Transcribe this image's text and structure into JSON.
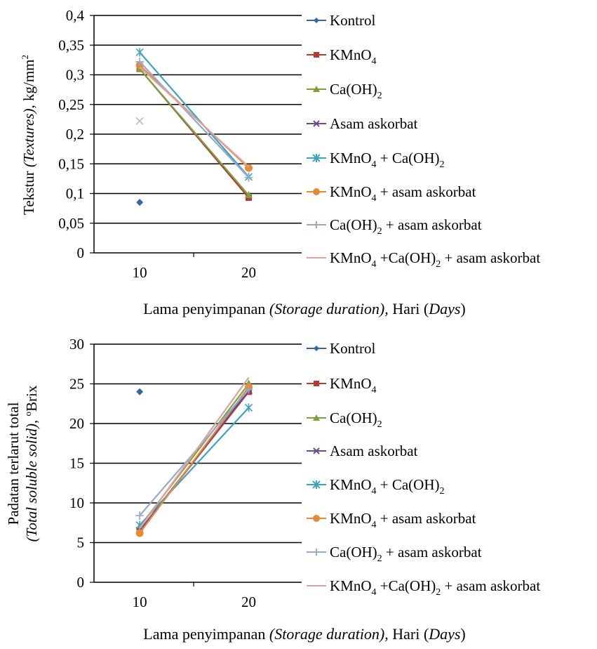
{
  "colors": {
    "kontrol": "#3466a5",
    "kmno4": "#b33a39",
    "caoh2": "#7ea23b",
    "asam": "#6a4c8c",
    "kmno4_caoh2": "#3ca4bf",
    "kmno4_asam": "#e88a34",
    "caoh2_asam": "#93a9d0",
    "all": "#e0a09f"
  },
  "legend_labels": {
    "kontrol": "Kontrol",
    "kmno4": "KMnO",
    "caoh2": "Ca(OH)",
    "asam": "Asam askorbat",
    "kmno4_caoh2_a": "KMnO",
    "kmno4_caoh2_b": " + Ca(OH)",
    "kmno4_asam_a": "KMnO",
    "kmno4_asam_b": " + asam askorbat",
    "caoh2_asam_a": "Ca(OH)",
    "caoh2_asam_b": " + asam askorbat",
    "all_a": "KMnO",
    "all_b": " +Ca(OH)",
    "all_c": " + asam askorbat",
    "sub4": "4",
    "sub2": "2"
  },
  "chart_data": [
    {
      "type": "line",
      "x": [
        10,
        20
      ],
      "xticklabels": [
        "10",
        "20"
      ],
      "yticklabels": [
        "0",
        "0,05",
        "0,1",
        "0,15",
        "0,2",
        "0,25",
        "0,3",
        "0,35",
        "0,4"
      ],
      "ylim": [
        0,
        0.4
      ],
      "ylabel_parts": [
        "Tekstur ",
        "(Textures)",
        ", kg/mm",
        "2"
      ],
      "xlabel_parts": [
        "Lama penyimpanan ",
        "(Storage duration),",
        " Hari (",
        "Days",
        ")"
      ],
      "grid": true,
      "legend_position": "right",
      "series": [
        {
          "name": "Kontrol",
          "values": [
            0.085,
            null
          ]
        },
        {
          "name": "KMnO4",
          "values": [
            0.31,
            0.093
          ]
        },
        {
          "name": "Ca(OH)2",
          "values": [
            0.31,
            0.097
          ]
        },
        {
          "name": "Asam askorbat",
          "values": [
            0.222,
            null
          ]
        },
        {
          "name": "KMnO4 + Ca(OH)2",
          "values": [
            0.338,
            0.128
          ]
        },
        {
          "name": "KMnO4 + asam askorbat",
          "values": [
            0.316,
            0.143
          ]
        },
        {
          "name": "Ca(OH)2 + asam askorbat",
          "values": [
            0.322,
            0.127
          ]
        },
        {
          "name": "KMnO4 +Ca(OH)2 + asam askorbat",
          "values": [
            0.313,
            0.145
          ]
        }
      ]
    },
    {
      "type": "line",
      "x": [
        10,
        20
      ],
      "xticklabels": [
        "10",
        "20"
      ],
      "yticklabels": [
        "0",
        "5",
        "10",
        "15",
        "20",
        "25",
        "30"
      ],
      "ylim": [
        0,
        30
      ],
      "ylabel_parts": [
        "Padatan terlarut total",
        "(Total soluble solid)",
        ", ",
        "o",
        "Brix"
      ],
      "xlabel_parts": [
        "Lama penyimpanan ",
        "(Storage duration),",
        " Hari (",
        "Days",
        ")"
      ],
      "grid": true,
      "legend_position": "right",
      "series": [
        {
          "name": "Kontrol",
          "values": [
            24,
            null
          ]
        },
        {
          "name": "KMnO4",
          "values": [
            6.5,
            24
          ]
        },
        {
          "name": "Ca(OH)2",
          "values": [
            7,
            25
          ]
        },
        {
          "name": "Asam askorbat",
          "values": [
            6.5,
            24.2
          ]
        },
        {
          "name": "KMnO4 + Ca(OH)2",
          "values": [
            7.2,
            22
          ]
        },
        {
          "name": "KMnO4 + asam askorbat",
          "values": [
            6.2,
            24.6
          ]
        },
        {
          "name": "Ca(OH)2 + asam askorbat",
          "values": [
            8.4,
            24.3
          ]
        },
        {
          "name": "KMnO4 +Ca(OH)2 + asam askorbat",
          "values": [
            6.8,
            25.8
          ]
        }
      ]
    }
  ]
}
